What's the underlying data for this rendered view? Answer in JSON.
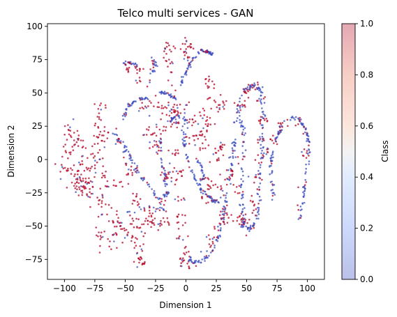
{
  "chart_data": {
    "type": "scatter",
    "title": "Telco multi services - GAN",
    "xlabel": "Dimension 1",
    "ylabel": "Dimension 2",
    "xlim": [
      -114,
      114
    ],
    "ylim": [
      -90,
      102
    ],
    "xticks": [
      -100,
      -75,
      -50,
      -25,
      0,
      25,
      50,
      75,
      100
    ],
    "yticks": [
      -75,
      -50,
      -25,
      0,
      25,
      50,
      75,
      100
    ],
    "colorbar": {
      "label": "Class",
      "colormap": "coolwarm",
      "alpha": 0.35,
      "range": [
        0.0,
        1.0
      ],
      "ticks": [
        "0.0",
        "0.2",
        "0.4",
        "0.6",
        "0.8",
        "1.0"
      ]
    },
    "colors": {
      "class_0": "#3b4cc0",
      "class_1": "#b40426"
    },
    "grid": false,
    "legend": "none",
    "series": [
      {
        "cls": 1,
        "kind": "blob",
        "pts": [
          [
            -95,
            20
          ],
          [
            -97,
            5
          ],
          [
            -92,
            -10
          ],
          [
            -88,
            -20
          ],
          [
            -80,
            -5
          ],
          [
            -78,
            -25
          ],
          [
            -86,
            10
          ],
          [
            -100,
            -5
          ],
          [
            -83,
            -18
          ]
        ],
        "spread": 4,
        "n": 140
      },
      {
        "cls": 1,
        "kind": "blob",
        "pts": [
          [
            -70,
            40
          ],
          [
            -72,
            30
          ],
          [
            -68,
            20
          ],
          [
            -70,
            10
          ],
          [
            -72,
            0
          ],
          [
            -68,
            -10
          ],
          [
            -65,
            -20
          ],
          [
            -70,
            -30
          ],
          [
            -68,
            -40
          ]
        ],
        "spread": 3,
        "n": 70
      },
      {
        "cls": 1,
        "kind": "blob",
        "pts": [
          [
            -60,
            -45
          ],
          [
            -55,
            -50
          ],
          [
            -48,
            -55
          ],
          [
            -40,
            -60
          ],
          [
            -35,
            -50
          ],
          [
            -45,
            -48
          ],
          [
            -60,
            -60
          ],
          [
            -70,
            -58
          ],
          [
            -40,
            -70
          ]
        ],
        "spread": 3.5,
        "n": 90
      },
      {
        "cls": 1,
        "kind": "blob",
        "pts": [
          [
            -55,
            15
          ],
          [
            -50,
            0
          ],
          [
            -45,
            -10
          ],
          [
            -55,
            -20
          ],
          [
            -60,
            -35
          ],
          [
            -40,
            -30
          ],
          [
            -30,
            -40
          ],
          [
            -20,
            -35
          ],
          [
            -25,
            -48
          ],
          [
            -15,
            -45
          ]
        ],
        "spread": 3,
        "n": 80
      },
      {
        "cls": 1,
        "kind": "blob",
        "pts": [
          [
            -38,
            -75
          ],
          [
            -42,
            -78
          ],
          [
            -35,
            -78
          ]
        ],
        "spread": 1.5,
        "n": 15
      },
      {
        "cls": 1,
        "kind": "blob",
        "pts": [
          [
            -45,
            72
          ],
          [
            -48,
            70
          ],
          [
            -40,
            68
          ],
          [
            -40,
            60
          ],
          [
            -30,
            58
          ],
          [
            -28,
            72
          ]
        ],
        "spread": 2,
        "n": 30
      },
      {
        "cls": 1,
        "kind": "blob",
        "pts": [
          [
            -15,
            75
          ],
          [
            -12,
            65
          ],
          [
            -10,
            55
          ],
          [
            -15,
            85
          ],
          [
            -12,
            40
          ],
          [
            -10,
            30
          ]
        ],
        "spread": 2.5,
        "n": 45
      },
      {
        "cls": 1,
        "kind": "blob",
        "pts": [
          [
            0,
            88
          ],
          [
            3,
            85
          ],
          [
            -2,
            80
          ],
          [
            2,
            75
          ]
        ],
        "spread": 2,
        "n": 25
      },
      {
        "cls": 1,
        "kind": "blob",
        "pts": [
          [
            -35,
            40
          ],
          [
            -25,
            42
          ],
          [
            -15,
            38
          ],
          [
            -5,
            35
          ],
          [
            -10,
            28
          ],
          [
            -20,
            25
          ],
          [
            -30,
            20
          ],
          [
            -25,
            10
          ],
          [
            -10,
            5
          ],
          [
            -5,
            -10
          ],
          [
            -15,
            -15
          ],
          [
            -5,
            -30
          ],
          [
            -5,
            -45
          ]
        ],
        "spread": 3,
        "n": 130
      },
      {
        "cls": 1,
        "kind": "blob",
        "pts": [
          [
            2,
            40
          ],
          [
            5,
            28
          ],
          [
            10,
            20
          ],
          [
            5,
            15
          ],
          [
            15,
            35
          ],
          [
            18,
            25
          ],
          [
            12,
            10
          ]
        ],
        "spread": 2.5,
        "n": 55
      },
      {
        "cls": 1,
        "kind": "blob",
        "pts": [
          [
            20,
            55
          ],
          [
            22,
            45
          ],
          [
            18,
            60
          ],
          [
            25,
            35
          ],
          [
            30,
            40
          ]
        ],
        "spread": 2,
        "n": 30
      },
      {
        "cls": 1,
        "kind": "blob",
        "pts": [
          [
            15,
            15
          ],
          [
            18,
            0
          ],
          [
            15,
            -15
          ],
          [
            16,
            -30
          ],
          [
            20,
            -20
          ],
          [
            22,
            5
          ]
        ],
        "spread": 2,
        "n": 35
      },
      {
        "cls": 1,
        "kind": "blob",
        "pts": [
          [
            30,
            10
          ],
          [
            28,
            0
          ],
          [
            32,
            -15
          ],
          [
            30,
            -30
          ],
          [
            32,
            -40
          ],
          [
            28,
            -20
          ]
        ],
        "spread": 2,
        "n": 35
      },
      {
        "cls": 1,
        "kind": "blob",
        "pts": [
          [
            40,
            10
          ],
          [
            38,
            -10
          ],
          [
            42,
            -25
          ],
          [
            45,
            0
          ]
        ],
        "spread": 2,
        "n": 20
      },
      {
        "cls": 1,
        "kind": "blob",
        "pts": [
          [
            -5,
            -60
          ],
          [
            0,
            -68
          ],
          [
            -2,
            -75
          ],
          [
            5,
            -78
          ],
          [
            12,
            -72
          ],
          [
            20,
            -62
          ],
          [
            25,
            -52
          ],
          [
            32,
            -45
          ]
        ],
        "spread": 2.5,
        "n": 60
      },
      {
        "cls": 1,
        "kind": "blob",
        "pts": [
          [
            55,
            55
          ],
          [
            60,
            45
          ],
          [
            63,
            30
          ],
          [
            62,
            15
          ],
          [
            60,
            0
          ],
          [
            58,
            -15
          ],
          [
            57,
            -30
          ],
          [
            55,
            -45
          ],
          [
            50,
            -50
          ],
          [
            45,
            -45
          ],
          [
            42,
            -20
          ],
          [
            45,
            40
          ],
          [
            50,
            52
          ]
        ],
        "spread": 2.5,
        "n": 110
      },
      {
        "cls": 1,
        "kind": "blob",
        "pts": [
          [
            68,
            5
          ],
          [
            72,
            15
          ],
          [
            78,
            25
          ],
          [
            92,
            28
          ],
          [
            100,
            20
          ],
          [
            98,
            5
          ],
          [
            96,
            -20
          ],
          [
            92,
            -35
          ]
        ],
        "spread": 2,
        "n": 45
      },
      {
        "cls": 0,
        "kind": "curve",
        "pts": [
          [
            -52,
            30
          ],
          [
            -48,
            40
          ],
          [
            -40,
            45
          ],
          [
            -32,
            46
          ]
        ],
        "spread": 0.6,
        "n": 40
      },
      {
        "cls": 0,
        "kind": "curve",
        "pts": [
          [
            -22,
            51
          ],
          [
            -15,
            49
          ],
          [
            -8,
            46
          ]
        ],
        "spread": 0.6,
        "n": 30
      },
      {
        "cls": 0,
        "kind": "curve",
        "pts": [
          [
            -5,
            55
          ],
          [
            0,
            65
          ],
          [
            5,
            75
          ],
          [
            12,
            82
          ],
          [
            18,
            81
          ],
          [
            22,
            79
          ]
        ],
        "spread": 0.6,
        "n": 70
      },
      {
        "cls": 0,
        "kind": "curve",
        "pts": [
          [
            -60,
            20
          ],
          [
            -52,
            12
          ],
          [
            -45,
            0
          ],
          [
            -38,
            -12
          ],
          [
            -30,
            -20
          ],
          [
            -25,
            -28
          ],
          [
            -20,
            -30
          ],
          [
            -15,
            -25
          ],
          [
            -18,
            -10
          ],
          [
            -22,
            5
          ],
          [
            -20,
            20
          ],
          [
            -12,
            30
          ],
          [
            -5,
            33
          ]
        ],
        "spread": 0.8,
        "n": 120
      },
      {
        "cls": 0,
        "kind": "curve",
        "pts": [
          [
            0,
            35
          ],
          [
            -2,
            20
          ],
          [
            0,
            5
          ],
          [
            5,
            -10
          ],
          [
            12,
            -22
          ],
          [
            20,
            -30
          ],
          [
            26,
            -32
          ]
        ],
        "spread": 0.8,
        "n": 80
      },
      {
        "cls": 0,
        "kind": "curve",
        "pts": [
          [
            40,
            15
          ],
          [
            38,
            0
          ],
          [
            35,
            -20
          ],
          [
            32,
            -40
          ],
          [
            28,
            -55
          ],
          [
            22,
            -68
          ],
          [
            15,
            -75
          ],
          [
            8,
            -78
          ],
          [
            2,
            -75
          ]
        ],
        "spread": 1,
        "n": 100
      },
      {
        "cls": 0,
        "kind": "curve",
        "pts": [
          [
            40,
            25
          ],
          [
            43,
            40
          ],
          [
            48,
            52
          ],
          [
            55,
            56
          ],
          [
            61,
            53
          ],
          [
            64,
            40
          ],
          [
            63,
            25
          ],
          [
            62,
            5
          ],
          [
            61,
            -15
          ],
          [
            60,
            -35
          ],
          [
            57,
            -48
          ],
          [
            52,
            -53
          ],
          [
            48,
            -50
          ],
          [
            46,
            -40
          ],
          [
            46,
            -20
          ],
          [
            48,
            0
          ],
          [
            47,
            20
          ],
          [
            44,
            35
          ]
        ],
        "spread": 0.9,
        "n": 180
      },
      {
        "cls": 0,
        "kind": "curve",
        "pts": [
          [
            72,
            -30
          ],
          [
            70,
            -15
          ],
          [
            70,
            0
          ],
          [
            74,
            15
          ],
          [
            80,
            27
          ],
          [
            88,
            32
          ],
          [
            96,
            28
          ],
          [
            101,
            15
          ],
          [
            101,
            0
          ],
          [
            98,
            -20
          ],
          [
            96,
            -35
          ],
          [
            93,
            -48
          ]
        ],
        "spread": 0.8,
        "n": 130
      },
      {
        "cls": 0,
        "kind": "curve",
        "pts": [
          [
            -52,
            73
          ],
          [
            -45,
            72
          ],
          [
            -40,
            70
          ]
        ],
        "spread": 0.8,
        "n": 20
      },
      {
        "cls": 0,
        "kind": "curve",
        "pts": [
          [
            -28,
            78
          ],
          [
            -25,
            70
          ],
          [
            -28,
            65
          ]
        ],
        "spread": 0.6,
        "n": 15
      },
      {
        "cls": 0,
        "kind": "curve",
        "pts": [
          [
            8,
            5
          ],
          [
            12,
            -5
          ],
          [
            15,
            -15
          ],
          [
            10,
            -20
          ]
        ],
        "spread": 0.8,
        "n": 25
      },
      {
        "cls": 0,
        "kind": "curve",
        "pts": [
          [
            -48,
            -40
          ],
          [
            -30,
            -35
          ],
          [
            -15,
            -38
          ]
        ],
        "spread": 1,
        "n": 20
      }
    ]
  }
}
